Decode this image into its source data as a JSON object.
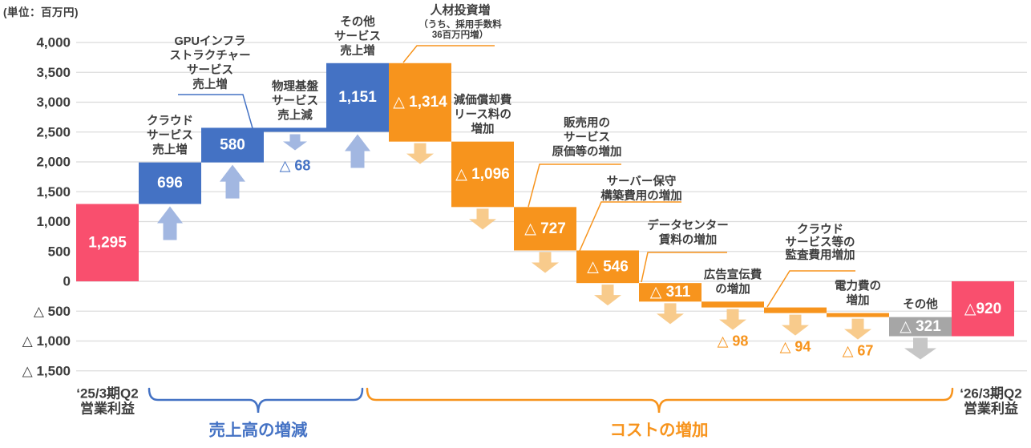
{
  "chart_data": {
    "type": "bar",
    "subtype": "waterfall",
    "unit_label": "(単位：百万円)",
    "y_axis": {
      "min": -1500,
      "max": 4000,
      "step": 500,
      "tick_labels": [
        "4,000",
        "3,500",
        "3,000",
        "2,500",
        "2,000",
        "1,500",
        "1,000",
        "500",
        "0",
        "△ 500",
        "△ 1,000",
        "△ 1,500"
      ]
    },
    "items": [
      {
        "name": "fy25-q2-operating-profit",
        "kind": "start",
        "value": 1295,
        "value_label": "1,295",
        "value_placement": "inside",
        "label_lines": [
          "‘25/3期Q2",
          "営業利益"
        ]
      },
      {
        "name": "cloud-service-revenue-increase",
        "kind": "increase",
        "value": 696,
        "value_label": "696",
        "value_placement": "inside",
        "label_lines": [
          "クラウド",
          "サービス",
          "売上増"
        ]
      },
      {
        "name": "gpu-infrastructure-service-revenue-increase",
        "kind": "increase",
        "value": 580,
        "value_label": "580",
        "value_placement": "inside",
        "label_lines": [
          "GPUインフラ",
          "ストラクチャー",
          "サービス",
          "売上増"
        ]
      },
      {
        "name": "physical-infrastructure-service-revenue-decrease",
        "kind": "decrease_revenue",
        "value": -68,
        "value_label": "△ 68",
        "value_placement": "below",
        "label_lines": [
          "物理基盤",
          "サービス",
          "売上減"
        ]
      },
      {
        "name": "other-service-revenue-increase",
        "kind": "increase",
        "value": 1151,
        "value_label": "1,151",
        "value_placement": "inside",
        "label_lines": [
          "その他",
          "サービス",
          "売上増"
        ]
      },
      {
        "name": "personnel-investment-increase",
        "kind": "cost",
        "value": -1314,
        "value_label": "△ 1,314",
        "value_placement": "inside",
        "label_lines": [
          "人材投資増"
        ],
        "sublabel_lines": [
          "（うち、採用手数料",
          "36百万円増）"
        ]
      },
      {
        "name": "depreciation-lease-expense-increase",
        "kind": "cost",
        "value": -1096,
        "value_label": "△ 1,096",
        "value_placement": "inside",
        "label_lines": [
          "減価償却費",
          "リース料の",
          "増加"
        ]
      },
      {
        "name": "sales-service-cost-increase",
        "kind": "cost",
        "value": -727,
        "value_label": "△ 727",
        "value_placement": "inside",
        "label_lines": [
          "販売用の",
          "サービス",
          "原価等の増加"
        ]
      },
      {
        "name": "server-maintenance-build-cost-increase",
        "kind": "cost",
        "value": -546,
        "value_label": "△ 546",
        "value_placement": "inside",
        "label_lines": [
          "サーバー保守",
          "構築費用の増加"
        ]
      },
      {
        "name": "datacenter-rent-increase",
        "kind": "cost",
        "value": -311,
        "value_label": "△ 311",
        "value_placement": "inside",
        "label_lines": [
          "データセンター",
          "賃料の増加"
        ]
      },
      {
        "name": "advertising-expense-increase",
        "kind": "cost",
        "value": -98,
        "value_label": "△ 98",
        "value_placement": "below",
        "label_lines": [
          "広告宣伝費",
          "の増加"
        ]
      },
      {
        "name": "cloud-service-audit-cost-increase",
        "kind": "cost",
        "value": -94,
        "value_label": "△ 94",
        "value_placement": "below",
        "label_lines": [
          "クラウド",
          "サービス等の",
          "監査費用増加"
        ]
      },
      {
        "name": "electricity-cost-increase",
        "kind": "cost",
        "value": -67,
        "value_label": "△ 67",
        "value_placement": "below",
        "label_lines": [
          "電力費の",
          "増加"
        ]
      },
      {
        "name": "others",
        "kind": "other",
        "value": -321,
        "value_label": "△ 321",
        "value_placement": "inside",
        "label_lines": [
          "その他"
        ]
      },
      {
        "name": "fy26-q2-operating-profit",
        "kind": "end",
        "value": -920,
        "value_label": "△920",
        "value_placement": "inside",
        "label_lines": [
          "‘26/3期Q2",
          "営業利益"
        ]
      }
    ],
    "groups": [
      {
        "name": "revenue-change-group",
        "label": "売上高の増減",
        "color": "#4472C4"
      },
      {
        "name": "cost-increase-group",
        "label": "コストの増加",
        "color": "#F7941D"
      }
    ],
    "palette": {
      "total_bar": "#F94F6E",
      "revenue_bar": "#4472C4",
      "cost_bar": "#F7941D",
      "other_bar": "#A6A6A6",
      "revenue_arrow": "#A2B7E1",
      "cost_arrow": "#F8CB8C",
      "other_arrow": "#C6C6C6",
      "grid": "#DBDBDB",
      "text": "#3D3D3D",
      "bar_value_text": "#FFFFFF"
    }
  }
}
